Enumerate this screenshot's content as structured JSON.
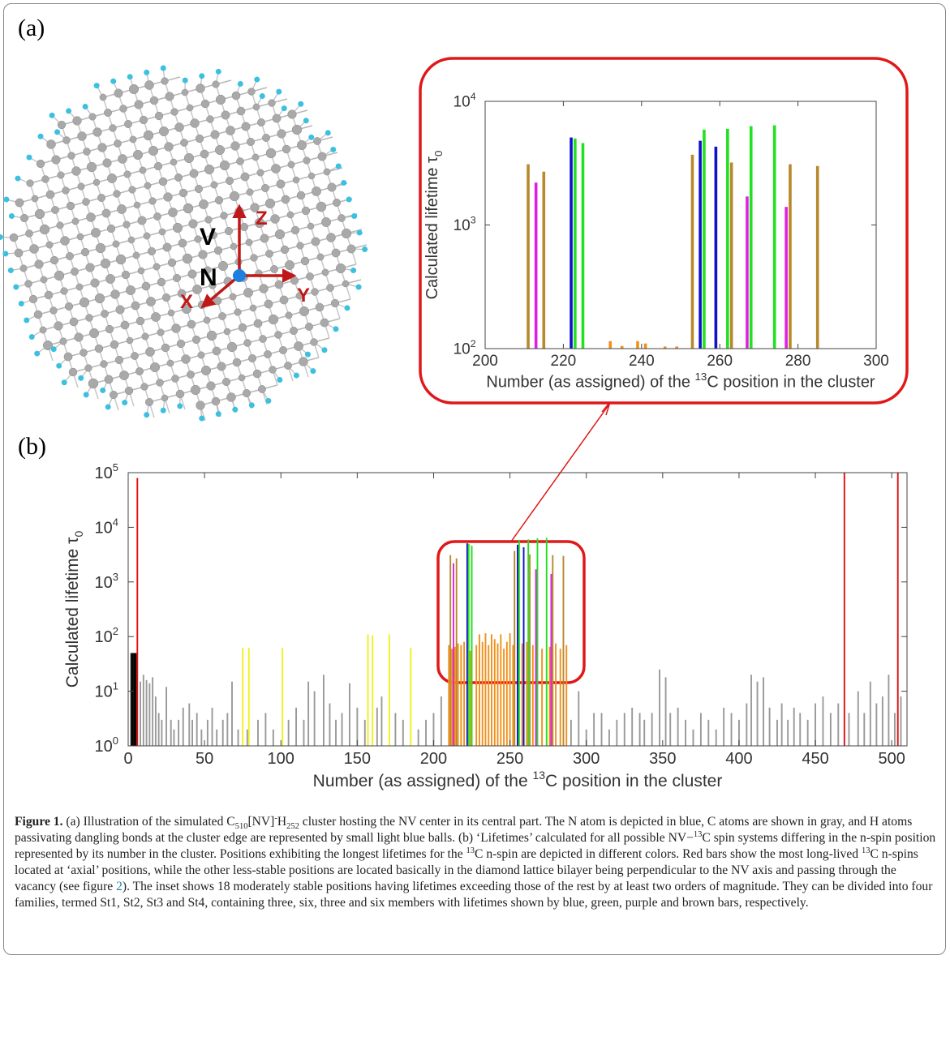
{
  "panel_labels": [
    "(a)",
    "(b)"
  ],
  "illustration": {
    "labels": [
      "V",
      "N",
      "Z",
      "X",
      "Y"
    ]
  },
  "chart_data": [
    {
      "type": "bar",
      "log_y": true,
      "xlabel": [
        "Number (as assigned) of the ",
        "13",
        "C position in the cluster"
      ],
      "ylabel": [
        "Calculated lifetime  τ",
        "0"
      ],
      "xlim": [
        200,
        300
      ],
      "xticks": [
        200,
        220,
        240,
        260,
        280,
        300
      ],
      "ylim": [
        100,
        10000
      ],
      "yticks": [
        {
          "value": 100,
          "label": [
            "10",
            "2"
          ]
        },
        {
          "value": 1000,
          "label": [
            "10",
            "3"
          ]
        },
        {
          "value": 10000,
          "label": [
            "10",
            "4"
          ]
        }
      ],
      "series": [
        {
          "color": "#b8892c",
          "x": [
            211,
            215,
            253,
            263,
            278,
            285
          ],
          "values": [
            3100,
            2700,
            3700,
            3200,
            3100,
            3000
          ]
        },
        {
          "color": "#1010c8",
          "x": [
            222,
            255,
            259
          ],
          "values": [
            5100,
            4800,
            4300
          ]
        },
        {
          "color": "#22e022",
          "x": [
            223,
            225,
            256,
            262,
            268,
            274
          ],
          "values": [
            5000,
            4600,
            5900,
            6000,
            6300,
            6400
          ]
        },
        {
          "color": "#e020e0",
          "x": [
            213,
            267,
            277
          ],
          "values": [
            2200,
            1700,
            1400
          ]
        },
        {
          "color": "#f0901a",
          "x": [
            232,
            235,
            239,
            241,
            246,
            249
          ],
          "values": [
            115,
            105,
            115,
            110,
            104,
            104
          ]
        }
      ]
    },
    {
      "type": "bar",
      "log_y": true,
      "xlabel": [
        "Number (as assigned) of the ",
        "13",
        "C position in the cluster"
      ],
      "ylabel": [
        "Calculated lifetime  τ",
        "0"
      ],
      "xlim": [
        0,
        510
      ],
      "xticks": [
        0,
        50,
        100,
        150,
        200,
        250,
        300,
        350,
        400,
        450,
        500
      ],
      "ylim": [
        1,
        100000
      ],
      "yticks": [
        {
          "value": 1,
          "label": [
            "10",
            "0"
          ]
        },
        {
          "value": 10,
          "label": [
            "10",
            "1"
          ]
        },
        {
          "value": 100,
          "label": [
            "10",
            "2"
          ]
        },
        {
          "value": 1000,
          "label": [
            "10",
            "3"
          ]
        },
        {
          "value": 10000,
          "label": [
            "10",
            "4"
          ]
        },
        {
          "value": 100000,
          "label": [
            "10",
            "5"
          ]
        }
      ],
      "series": [
        {
          "color": "#999999",
          "x": [
            8,
            10,
            12,
            14,
            16,
            18,
            20,
            22,
            25,
            28,
            30,
            33,
            36,
            40,
            42,
            45,
            48,
            52,
            55,
            58,
            62,
            65,
            68,
            72,
            78,
            85,
            90,
            95,
            105,
            110,
            115,
            118,
            122,
            128,
            132,
            136,
            140,
            145,
            150,
            155,
            163,
            166,
            175,
            180,
            190,
            195,
            200,
            205,
            290,
            295,
            300,
            305,
            310,
            315,
            320,
            325,
            330,
            335,
            338,
            343,
            348,
            352,
            355,
            360,
            365,
            370,
            375,
            380,
            385,
            390,
            395,
            400,
            405,
            408,
            412,
            416,
            420,
            425,
            428,
            432,
            436,
            440,
            445,
            450,
            455,
            460,
            465,
            472,
            478,
            482,
            486,
            490,
            494,
            498,
            502,
            506
          ],
          "values": [
            15,
            20,
            16,
            14,
            18,
            8,
            4,
            3,
            12,
            3,
            2,
            3,
            5,
            6,
            3,
            4,
            2,
            3,
            5,
            2,
            3,
            4,
            15,
            2,
            2,
            3,
            4,
            2,
            3,
            5,
            3,
            15,
            10,
            20,
            6,
            3,
            4,
            14,
            5,
            3,
            5,
            8,
            4,
            3,
            2,
            3,
            4,
            8,
            3,
            10,
            2,
            4,
            4,
            2,
            3,
            4,
            5,
            4,
            3,
            4,
            25,
            18,
            4,
            5,
            3,
            2,
            4,
            3,
            2,
            5,
            4,
            3,
            6,
            20,
            15,
            18,
            5,
            3,
            6,
            3,
            5,
            4,
            3,
            6,
            8,
            4,
            6,
            4,
            10,
            4,
            15,
            6,
            8,
            20,
            4,
            8
          ]
        },
        {
          "color": "#f0901a",
          "x": [
            210,
            212,
            214,
            216,
            218,
            220,
            224,
            228,
            230,
            232,
            234,
            236,
            238,
            240,
            242,
            244,
            246,
            248,
            250,
            252,
            258,
            261,
            265,
            271,
            276,
            280,
            283,
            287
          ],
          "values": [
            70,
            60,
            65,
            75,
            70,
            80,
            55,
            70,
            110,
            80,
            115,
            70,
            110,
            90,
            75,
            110,
            60,
            80,
            115,
            70,
            75,
            80,
            70,
            60,
            65,
            75,
            60,
            70
          ]
        },
        {
          "color": "#f0f020",
          "x": [
            75,
            79,
            101,
            157,
            160,
            171,
            185
          ],
          "values": [
            62,
            62,
            62,
            110,
            105,
            110,
            62
          ]
        },
        {
          "color": "#000000",
          "x": [
            2,
            3,
            4,
            5
          ],
          "values": [
            50,
            50,
            50,
            50
          ]
        },
        {
          "color": "#e01010",
          "x": [
            6,
            469,
            504
          ],
          "values": [
            80000,
            100000,
            100000
          ]
        },
        {
          "color": "#b8892c",
          "x": [
            211,
            215,
            253,
            263,
            278,
            285
          ],
          "values": [
            3100,
            2700,
            3700,
            3200,
            3100,
            3000
          ]
        },
        {
          "color": "#1010c8",
          "x": [
            222,
            255,
            259
          ],
          "values": [
            5100,
            4800,
            4300
          ]
        },
        {
          "color": "#22e022",
          "x": [
            223,
            225,
            256,
            262,
            268,
            274
          ],
          "values": [
            5000,
            4600,
            5900,
            6000,
            6300,
            6400
          ]
        },
        {
          "color": "#e020e0",
          "x": [
            213,
            267,
            277
          ],
          "values": [
            2200,
            1700,
            1400
          ]
        }
      ]
    }
  ],
  "caption": [
    "Figure 1.",
    " (a) Illustration of the simulated C",
    "510",
    "[NV]",
    "-",
    "H",
    "252",
    " cluster hosting the NV center in its central part. The N atom is depicted in blue, C atoms are shown in gray, and H atoms passivating dangling bonds at the cluster edge are represented by small light blue balls. (b) ‘Lifetimes’ calculated for all possible NV−",
    "13",
    "C spin systems differing in the n-spin position represented by its number in the cluster. Positions exhibiting the longest lifetimes for the ",
    "13",
    "C n-spin are depicted in different colors. Red bars show the most long-lived ",
    "13",
    "C n-spins located at ‘axial’ positions, while the other less-stable positions are located basically in the diamond lattice bilayer being perpendicular to the NV axis and passing through the vacancy (see figure ",
    "2",
    "). The inset shows 18 moderately stable positions having lifetimes exceeding those of the rest by at least two orders of magnitude. They can be divided into four families, termed St1, St2, St3 and St4, containing three, six, three and six members with lifetimes shown by blue, green, purple and brown bars, respectively."
  ]
}
